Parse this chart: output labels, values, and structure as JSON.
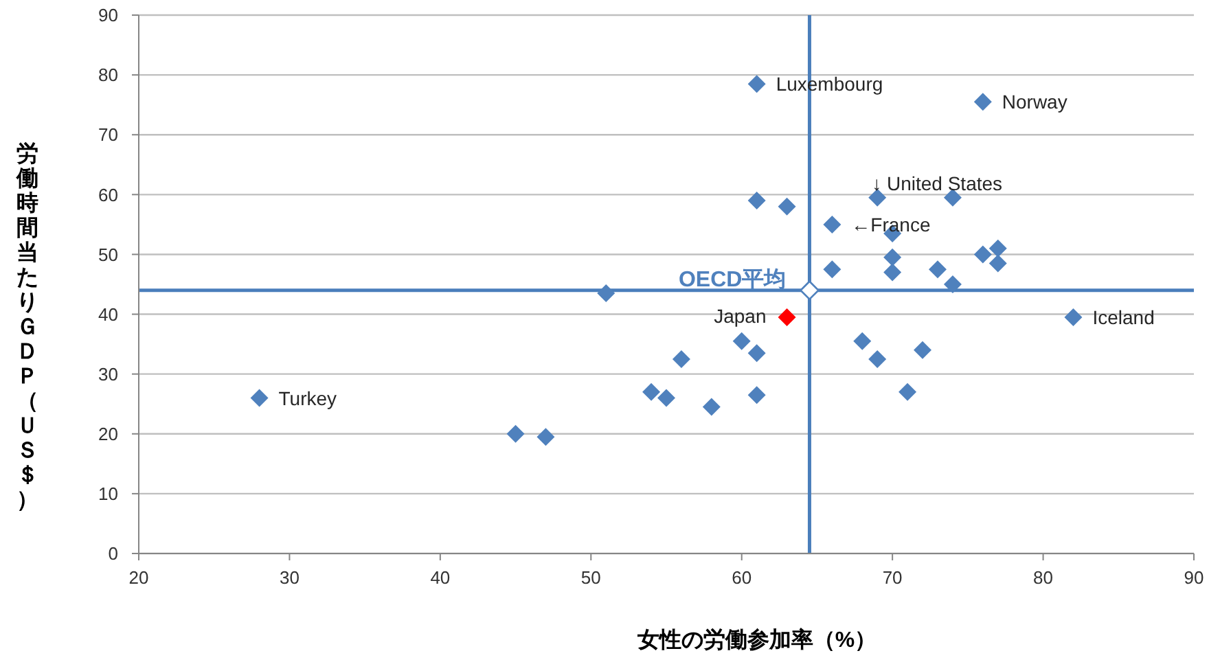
{
  "chart_data": {
    "type": "scatter",
    "xlabel": "女性の労働参加率（%）",
    "ylabel": "労働時間当たりＧＤＰ（ＵＳ＄）",
    "xlim": [
      20,
      90
    ],
    "xticks": [
      20,
      30,
      40,
      50,
      60,
      70,
      80,
      90
    ],
    "ylim": [
      0,
      90
    ],
    "yticks": [
      0,
      10,
      20,
      30,
      40,
      50,
      60,
      70,
      80,
      90
    ],
    "grid": "y",
    "marker": "diamond",
    "series": [
      {
        "color": "#4f81bd",
        "x": [
          28,
          45,
          47,
          51,
          54,
          55,
          56,
          58,
          60,
          61,
          61,
          61,
          61,
          63,
          66,
          66,
          68,
          69,
          69,
          70,
          70,
          70,
          71,
          72,
          73,
          74,
          74,
          76,
          76,
          77,
          77,
          82
        ],
        "values": [
          26,
          20,
          19.5,
          43.5,
          27,
          26,
          32.5,
          24.5,
          35.5,
          33.5,
          26.5,
          78.5,
          59,
          58,
          55,
          47.5,
          35.5,
          59.5,
          32.5,
          53.5,
          49.5,
          47,
          27,
          34,
          47.5,
          59.5,
          45,
          75.5,
          50,
          51,
          48.5,
          39.5
        ]
      },
      {
        "name": "Japan",
        "color": "#ff0000",
        "x": [
          63
        ],
        "values": [
          39.5
        ]
      },
      {
        "name": "OECD平均",
        "color": "#4f81bd",
        "x": [
          64.5
        ],
        "values": [
          44
        ]
      }
    ],
    "ref_lines": [
      {
        "axis": "x",
        "value": 64.5,
        "color": "#4a7ebb"
      },
      {
        "axis": "y",
        "value": 44,
        "color": "#4a7ebb"
      }
    ],
    "annotations": [
      {
        "text": "Luxembourg",
        "x": 61,
        "y": 78.5
      },
      {
        "text": "Norway",
        "x": 76,
        "y": 75.5
      },
      {
        "text": "↓ United States",
        "x": 69,
        "y": 59.5
      },
      {
        "text": "←France",
        "x": 66,
        "y": 55
      },
      {
        "text": "Iceland",
        "x": 82,
        "y": 39.5
      },
      {
        "text": "Turkey",
        "x": 28,
        "y": 26
      }
    ]
  }
}
